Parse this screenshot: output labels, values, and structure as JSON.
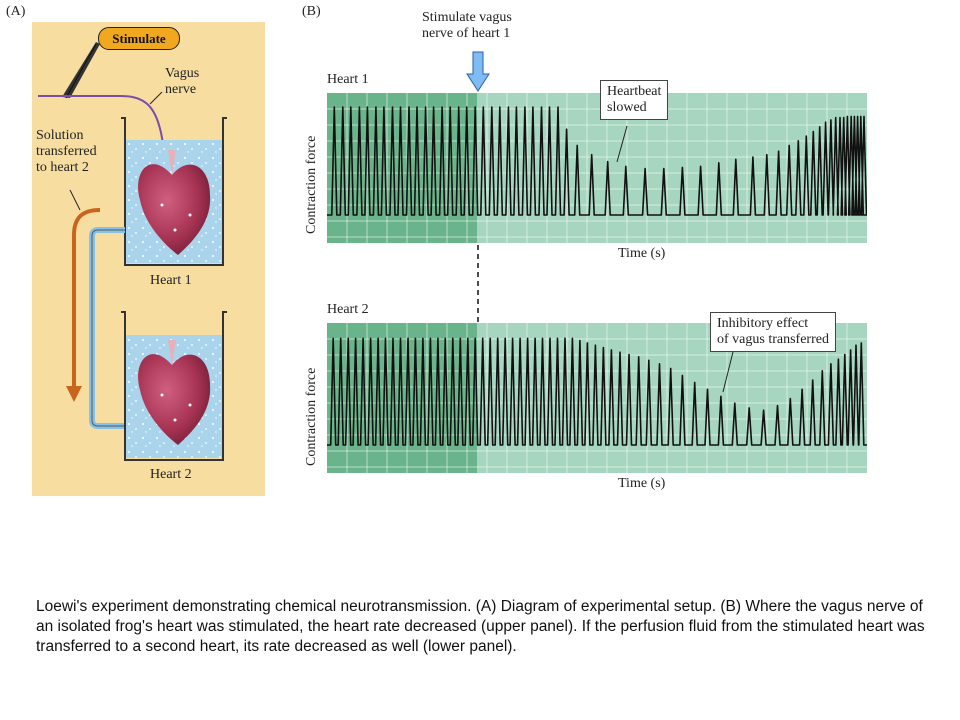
{
  "panels": {
    "a_label": "(A)",
    "b_label": "(B)"
  },
  "setup": {
    "stimulate_button": "Stimulate",
    "vagus_label": "Vagus\nnerve",
    "solution_label": "Solution\ntransferred\nto heart 2",
    "heart1_label": "Heart 1",
    "heart2_label": "Heart 2"
  },
  "stimulus": {
    "label": "Stimulate vagus\nnerve of heart 1"
  },
  "traces": [
    {
      "title": "Heart 1",
      "ylabel": "Contraction force",
      "xlabel": "Time (s)",
      "callout": "Heartbeat\nslowed",
      "beat_heights": [
        0.93,
        0.93,
        0.93,
        0.93,
        0.93,
        0.93,
        0.93,
        0.93,
        0.93,
        0.93,
        0.93,
        0.93,
        0.93,
        0.93,
        0.93,
        0.93,
        0.93,
        0.93,
        0.93,
        0.93,
        0.93,
        0.93,
        0.93,
        0.93,
        0.93,
        0.93,
        0.93,
        0.93,
        0.74,
        0.6,
        0.52,
        0.46,
        0.42,
        0.4,
        0.4,
        0.41,
        0.42,
        0.45,
        0.48,
        0.5,
        0.52,
        0.55,
        0.6,
        0.64,
        0.68,
        0.72,
        0.76,
        0.8,
        0.82,
        0.84,
        0.84,
        0.84,
        0.85,
        0.85,
        0.85,
        0.85,
        0.85,
        0.85,
        0.85,
        0.85
      ],
      "beat_times": [
        0.008,
        0.024,
        0.039,
        0.055,
        0.07,
        0.086,
        0.101,
        0.117,
        0.132,
        0.148,
        0.163,
        0.179,
        0.194,
        0.21,
        0.225,
        0.241,
        0.256,
        0.272,
        0.287,
        0.303,
        0.318,
        0.334,
        0.349,
        0.365,
        0.38,
        0.396,
        0.411,
        0.427,
        0.443,
        0.463,
        0.49,
        0.52,
        0.554,
        0.59,
        0.625,
        0.66,
        0.694,
        0.728,
        0.76,
        0.792,
        0.818,
        0.84,
        0.86,
        0.877,
        0.892,
        0.905,
        0.917,
        0.928,
        0.938,
        0.947,
        0.955,
        0.962,
        0.969,
        0.976,
        0.982,
        0.988,
        0.994,
        1.0,
        1.0,
        1.0
      ]
    },
    {
      "title": "Heart 2",
      "ylabel": "Contraction force",
      "xlabel": "Time (s)",
      "callout": "Inhibitory effect\nof vagus transferred",
      "beat_heights": [
        0.92,
        0.92,
        0.92,
        0.92,
        0.92,
        0.92,
        0.92,
        0.92,
        0.92,
        0.92,
        0.92,
        0.92,
        0.92,
        0.92,
        0.92,
        0.92,
        0.92,
        0.92,
        0.92,
        0.92,
        0.92,
        0.92,
        0.92,
        0.92,
        0.92,
        0.92,
        0.92,
        0.92,
        0.92,
        0.92,
        0.92,
        0.92,
        0.92,
        0.9,
        0.88,
        0.86,
        0.84,
        0.82,
        0.8,
        0.78,
        0.76,
        0.73,
        0.7,
        0.66,
        0.6,
        0.54,
        0.48,
        0.42,
        0.36,
        0.32,
        0.3,
        0.34,
        0.4,
        0.48,
        0.56,
        0.64,
        0.7,
        0.74,
        0.78,
        0.82,
        0.86,
        0.88
      ],
      "beat_times": [
        0.006,
        0.02,
        0.034,
        0.048,
        0.062,
        0.076,
        0.09,
        0.104,
        0.118,
        0.132,
        0.146,
        0.16,
        0.174,
        0.188,
        0.202,
        0.216,
        0.23,
        0.244,
        0.258,
        0.272,
        0.286,
        0.3,
        0.314,
        0.328,
        0.342,
        0.356,
        0.37,
        0.384,
        0.398,
        0.412,
        0.426,
        0.44,
        0.454,
        0.468,
        0.482,
        0.497,
        0.512,
        0.527,
        0.543,
        0.56,
        0.578,
        0.597,
        0.617,
        0.638,
        0.66,
        0.683,
        0.707,
        0.732,
        0.758,
        0.785,
        0.812,
        0.838,
        0.862,
        0.884,
        0.904,
        0.922,
        0.938,
        0.952,
        0.964,
        0.975,
        0.985,
        0.995
      ]
    }
  ],
  "caption": "Loewi's experiment demonstrating chemical neurotransmission. (A) Diagram of experimental setup. (B) Where the vagus nerve of an isolated frog's heart was stimulated, the heart rate decreased (upper panel). If the perfusion fluid from the stimulated heart was transferred to a second heart, its rate decreased as well (lower panel).",
  "colors": {
    "panel_a_bg": "#f7dea0",
    "chart_bg_light": "#a6d6bf",
    "chart_bg_dark": "#69b48a",
    "water": "#a9d4ec",
    "heart": "#a83454",
    "stimulate_button": "#f0a81e",
    "arrow": "#7fbcf2"
  }
}
